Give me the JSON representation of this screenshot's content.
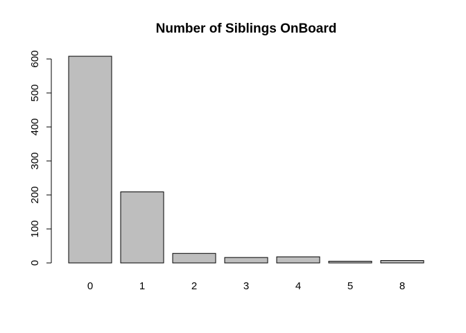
{
  "chart_data": {
    "type": "bar",
    "title": "Number of Siblings OnBoard",
    "xlabel": "",
    "ylabel": "",
    "categories": [
      "0",
      "1",
      "2",
      "3",
      "4",
      "5",
      "8"
    ],
    "values": [
      608,
      209,
      28,
      16,
      18,
      5,
      7
    ],
    "ylim": [
      0,
      600
    ],
    "yticks": [
      0,
      100,
      200,
      300,
      400,
      500,
      600
    ],
    "bar_color": "#bebebe",
    "grid": false,
    "legend": "none"
  }
}
